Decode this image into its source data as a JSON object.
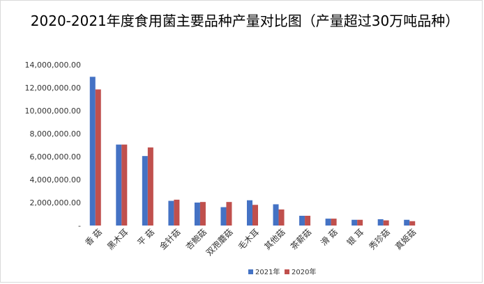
{
  "chart_data": {
    "type": "bar",
    "title": "2020-2021年度食用菌主要品种产量对比图（产量超过30万吨品种）",
    "xlabel": "",
    "ylabel": "",
    "categories": [
      "香 菇",
      "黑木耳",
      "平 菇",
      "金针菇",
      "杏鲍菇",
      "双孢蘑菇",
      "毛木耳",
      "其他菇",
      "茶薪菇",
      "滑 菇",
      "银 耳",
      "秀珍菇",
      "真姬菇"
    ],
    "series": [
      {
        "name": "2021年",
        "color": "#4472c4",
        "values": [
          12950000,
          7050000,
          6050000,
          2150000,
          2000000,
          1600000,
          2200000,
          1850000,
          850000,
          600000,
          500000,
          550000,
          500000
        ]
      },
      {
        "name": "2020年",
        "color": "#c0504d",
        "values": [
          11850000,
          7050000,
          6800000,
          2250000,
          2050000,
          2050000,
          1800000,
          1400000,
          850000,
          600000,
          500000,
          450000,
          380000
        ]
      }
    ],
    "ylim": [
      0,
      14000000
    ],
    "yticks": [
      0,
      2000000,
      4000000,
      6000000,
      8000000,
      10000000,
      12000000,
      14000000
    ],
    "ytick_labels": [
      "-",
      "2,000,000.00",
      "4,000,000.00",
      "6,000,000.00",
      "8,000,000.00",
      "10,000,000.00",
      "12,000,000.00",
      "14,000,000.00"
    ],
    "grid": false,
    "legend": "bottom"
  }
}
